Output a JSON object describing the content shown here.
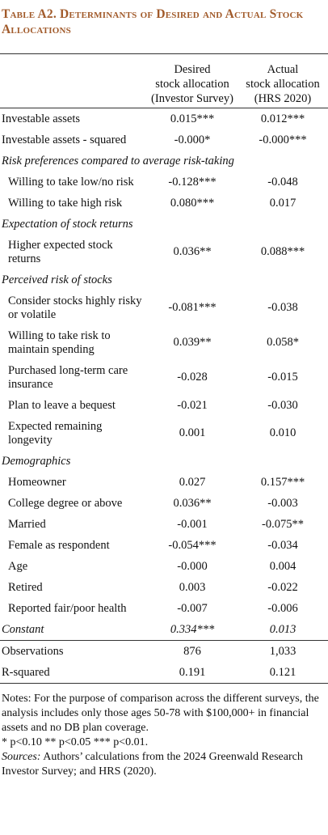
{
  "header": {
    "title": "Table A2. Determinants of Desired and Actual Stock Allocations"
  },
  "table": {
    "columns": [
      [
        "Desired",
        "stock allocation",
        "(Investor Survey)"
      ],
      [
        "Actual",
        "stock allocation",
        "(HRS 2020)"
      ]
    ],
    "groups": [
      {
        "rows": [
          [
            "Investable assets",
            "0.015***",
            "0.012***"
          ],
          [
            "Investable assets - squared",
            "-0.000*",
            "-0.000***"
          ]
        ]
      },
      {
        "heading": "Risk preferences compared to average risk-taking",
        "rows": [
          [
            "Willing to take low/no risk",
            "-0.128***",
            "-0.048"
          ],
          [
            "Willing to take high risk",
            "0.080***",
            "0.017"
          ]
        ]
      },
      {
        "heading": "Expectation of stock returns",
        "rows": [
          [
            "Higher expected stock returns",
            "0.036**",
            "0.088***"
          ]
        ]
      },
      {
        "heading": "Perceived risk of stocks",
        "rows": [
          [
            "Consider stocks highly risky or volatile",
            "-0.081***",
            "-0.038"
          ],
          [
            "Willing to take risk to maintain spending",
            "0.039**",
            "0.058*"
          ],
          [
            "Purchased long-term care insurance",
            "-0.028",
            "-0.015"
          ],
          [
            "Plan to leave a bequest",
            "-0.021",
            "-0.030"
          ],
          [
            "Expected remaining longevity",
            "0.001",
            "0.010"
          ]
        ]
      },
      {
        "heading": "Demographics",
        "rows": [
          [
            "Homeowner",
            "0.027",
            "0.157***"
          ],
          [
            "College degree or above",
            "0.036**",
            "-0.003"
          ],
          [
            "Married",
            "-0.001",
            "-0.075**"
          ],
          [
            "Female as respondent",
            "-0.054***",
            "-0.034"
          ],
          [
            "Age",
            "-0.000",
            "0.004"
          ],
          [
            "Retired",
            "0.003",
            "-0.022"
          ],
          [
            "Reported fair/poor health",
            "-0.007",
            "-0.006"
          ]
        ]
      }
    ],
    "constant": [
      "Constant",
      "0.334***",
      "0.013"
    ],
    "stats": [
      [
        "Observations",
        "876",
        "1,033"
      ],
      [
        "R-squared",
        "0.191",
        "0.121"
      ]
    ]
  },
  "notes": {
    "text": "Notes: For the purpose of comparison across the different surveys, the analysis includes only those ages 50-78 with $100,000+ in financial assets and no DB plan coverage.",
    "significance": "* p<0.10 ** p<0.05 *** p<0.01.",
    "sources_label": "Sources:",
    "sources": "Authors’ calculations from the 2024 Greenwald Research Investor Survey; and HRS (2020)."
  }
}
